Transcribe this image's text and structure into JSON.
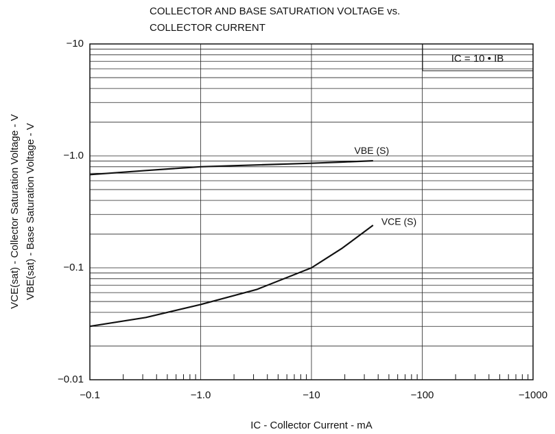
{
  "chart_data": {
    "type": "line",
    "title": [
      "COLLECTOR AND BASE SATURATION VOLTAGE vs.",
      "COLLECTOR CURRENT"
    ],
    "xlabel": "IC - Collector Current - mA",
    "ylabel": [
      "VCE(sat) - Collector Saturation Voltage - V",
      "VBE(sat) - Base Saturation Voltage - V"
    ],
    "annotation": "IC = 10 • IB",
    "log_x": true,
    "log_y": true,
    "grid": true,
    "xlim": [
      -0.1,
      -1000
    ],
    "ylim": [
      -0.01,
      -10
    ],
    "xticks": [
      {
        "value": -0.1,
        "label": "−0.1"
      },
      {
        "value": -1,
        "label": "−1.0"
      },
      {
        "value": -10,
        "label": "−10"
      },
      {
        "value": -100,
        "label": "−100"
      },
      {
        "value": -1000,
        "label": "−1000"
      }
    ],
    "yticks": [
      {
        "value": -0.01,
        "label": "−0.01"
      },
      {
        "value": -0.1,
        "label": "−0.1"
      },
      {
        "value": -1,
        "label": "−1.0"
      },
      {
        "value": -10,
        "label": "−10"
      }
    ],
    "x": [
      -0.1,
      -0.32,
      -1,
      -3.2,
      -10,
      -19,
      -36
    ],
    "series": [
      {
        "name": "VBE (S)",
        "color": "#111111",
        "values": [
          -0.68,
          -0.74,
          -0.8,
          -0.83,
          -0.86,
          -0.88,
          -0.905
        ]
      },
      {
        "name": "VCE (S)",
        "color": "#111111",
        "values": [
          -0.03,
          -0.036,
          -0.047,
          -0.064,
          -0.1,
          -0.15,
          -0.24
        ]
      }
    ]
  }
}
